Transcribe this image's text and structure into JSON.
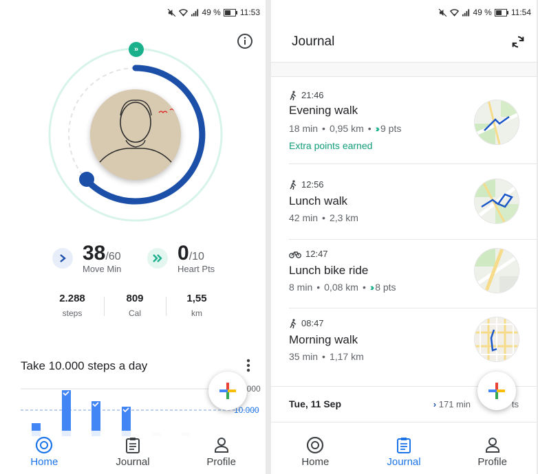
{
  "left": {
    "status": {
      "battery": "49 %",
      "time": "11:53"
    },
    "metrics": {
      "move": {
        "value": "38",
        "goal": "/60",
        "label": "Move Min"
      },
      "heart": {
        "value": "0",
        "goal": "/10",
        "label": "Heart Pts"
      }
    },
    "stats": [
      {
        "value": "2.288",
        "unit": "steps"
      },
      {
        "value": "809",
        "unit": "Cal"
      },
      {
        "value": "1,55",
        "unit": "km"
      }
    ],
    "goal": {
      "title": "Take 10.000 steps a day",
      "ref_high": "10.000",
      "ref_goal": "10.000"
    },
    "nav": [
      {
        "label": "Home",
        "icon": "home-icon"
      },
      {
        "label": "Journal",
        "icon": "journal-icon"
      },
      {
        "label": "Profile",
        "icon": "profile-icon"
      }
    ],
    "colors": {
      "accent": "#1a73e8",
      "ring_blue": "#1b4fa8",
      "ring_teal": "#c9efe4",
      "heart_green": "#1bb08c"
    }
  },
  "right": {
    "status": {
      "battery": "49 %",
      "time": "11:54"
    },
    "title": "Journal",
    "entries": [
      {
        "time": "21:46",
        "activity_icon": "walk-icon",
        "name": "Evening walk",
        "duration": "18 min",
        "distance": "0,95 km",
        "points": "9 pts",
        "extra": "Extra points earned"
      },
      {
        "time": "12:56",
        "activity_icon": "walk-icon",
        "name": "Lunch walk",
        "duration": "42 min",
        "distance": "2,3 km"
      },
      {
        "time": "12:47",
        "activity_icon": "bike-icon",
        "name": "Lunch bike ride",
        "duration": "8 min",
        "distance": "0,08 km",
        "points": "8 pts"
      },
      {
        "time": "08:47",
        "activity_icon": "walk-icon",
        "name": "Morning walk",
        "duration": "35 min",
        "distance": "1,17 km"
      }
    ],
    "day": {
      "date": "Tue, 11 Sep",
      "summary": "171 min",
      "points_tail": "ts"
    },
    "nav": [
      {
        "label": "Home",
        "icon": "home-icon"
      },
      {
        "label": "Journal",
        "icon": "journal-icon"
      },
      {
        "label": "Profile",
        "icon": "profile-icon"
      }
    ]
  }
}
